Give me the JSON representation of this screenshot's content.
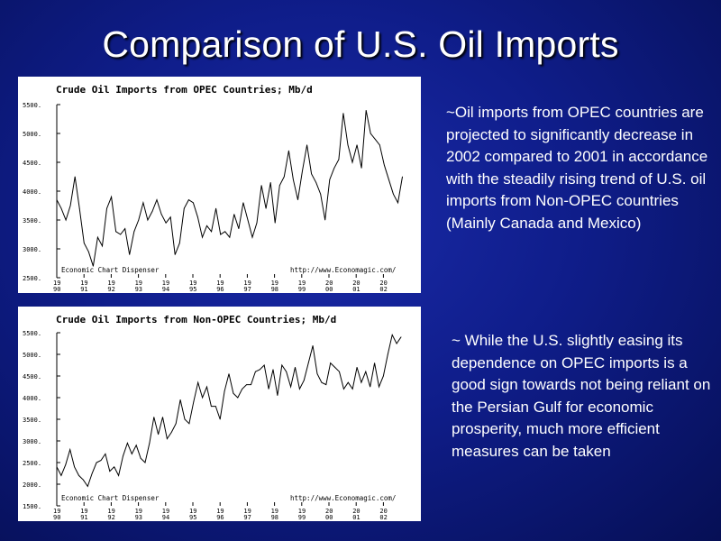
{
  "slide": {
    "title": "Comparison of U.S. Oil Imports",
    "note_opec": "~Oil imports from OPEC countries are projected to significantly decrease in 2002 compared to 2001 in accordance with the steadily rising trend of U.S. oil imports from Non-OPEC countries (Mainly Canada and Mexico)",
    "note_nonopec": "~ While the U.S. slightly easing its dependence on OPEC imports is a good sign towards not being reliant on the Persian Gulf for economic prosperity, much more efficient measures can be taken"
  },
  "chart_data": [
    {
      "type": "line",
      "title": "Crude Oil Imports from OPEC Countries; Mb/d",
      "footer_left": "Economic Chart Dispenser",
      "footer_right": "http://www.Economagic.com/",
      "ylim": [
        2500,
        5500
      ],
      "yticks": [
        "5500.",
        "5000.",
        "4500.",
        "4000.",
        "3500.",
        "3000.",
        "2500."
      ],
      "ytick_values": [
        5500,
        5000,
        4500,
        4000,
        3500,
        3000,
        2500
      ],
      "xticks": [
        [
          "19",
          "90"
        ],
        [
          "19",
          "91"
        ],
        [
          "19",
          "92"
        ],
        [
          "19",
          "93"
        ],
        [
          "19",
          "94"
        ],
        [
          "19",
          "95"
        ],
        [
          "19",
          "96"
        ],
        [
          "19",
          "97"
        ],
        [
          "19",
          "98"
        ],
        [
          "19",
          "99"
        ],
        [
          "20",
          "00"
        ],
        [
          "20",
          "01"
        ],
        [
          "20",
          "02"
        ]
      ],
      "x_start": 1990,
      "x_end": 2002.7,
      "values": [
        3850,
        3700,
        3500,
        3750,
        4250,
        3700,
        3100,
        2950,
        2700,
        3200,
        3050,
        3700,
        3900,
        3300,
        3250,
        3350,
        2900,
        3300,
        3500,
        3800,
        3500,
        3650,
        3850,
        3600,
        3450,
        3550,
        2900,
        3100,
        3700,
        3850,
        3800,
        3550,
        3200,
        3400,
        3300,
        3700,
        3250,
        3300,
        3200,
        3600,
        3350,
        3800,
        3500,
        3200,
        3450,
        4100,
        3700,
        4150,
        3450,
        4100,
        4250,
        4700,
        4200,
        3850,
        4350,
        4800,
        4300,
        4150,
        3950,
        3500,
        4200,
        4400,
        4550,
        5350,
        4800,
        4500,
        4800,
        4400,
        5400,
        5000,
        4900,
        4800,
        4450,
        4200,
        3950,
        3800,
        4250
      ]
    },
    {
      "type": "line",
      "title": "Crude Oil Imports from Non-OPEC Countries; Mb/d",
      "footer_left": "Economic Chart Dispenser",
      "footer_right": "http://www.Economagic.com/",
      "ylim": [
        1500,
        5500
      ],
      "yticks": [
        "5500.",
        "5000.",
        "4500.",
        "4000.",
        "3500.",
        "3000.",
        "2500.",
        "2000.",
        "1500."
      ],
      "ytick_values": [
        5500,
        5000,
        4500,
        4000,
        3500,
        3000,
        2500,
        2000,
        1500
      ],
      "xticks": [
        [
          "19",
          "90"
        ],
        [
          "19",
          "91"
        ],
        [
          "19",
          "92"
        ],
        [
          "19",
          "93"
        ],
        [
          "19",
          "94"
        ],
        [
          "19",
          "95"
        ],
        [
          "19",
          "96"
        ],
        [
          "19",
          "97"
        ],
        [
          "19",
          "98"
        ],
        [
          "19",
          "99"
        ],
        [
          "20",
          "00"
        ],
        [
          "20",
          "01"
        ],
        [
          "20",
          "02"
        ]
      ],
      "x_start": 1990,
      "x_end": 2002.65,
      "values": [
        2400,
        2200,
        2450,
        2800,
        2400,
        2200,
        2100,
        1950,
        2250,
        2500,
        2550,
        2700,
        2300,
        2400,
        2200,
        2650,
        2950,
        2700,
        2900,
        2600,
        2500,
        2950,
        3550,
        3150,
        3550,
        3050,
        3200,
        3400,
        3950,
        3500,
        3400,
        3900,
        4350,
        4000,
        4250,
        3800,
        3800,
        3500,
        4150,
        4550,
        4100,
        4000,
        4200,
        4300,
        4300,
        4600,
        4650,
        4750,
        4200,
        4650,
        4050,
        4750,
        4600,
        4250,
        4700,
        4200,
        4400,
        4800,
        5200,
        4550,
        4350,
        4300,
        4800,
        4700,
        4600,
        4200,
        4350,
        4200,
        4700,
        4350,
        4600,
        4250,
        4800,
        4250,
        4500,
        5000,
        5450,
        5250,
        5400
      ]
    }
  ]
}
